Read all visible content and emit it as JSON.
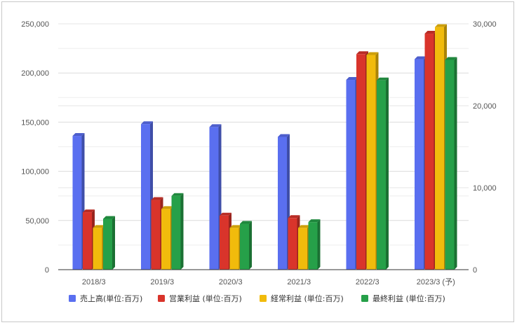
{
  "chart_data": {
    "type": "bar",
    "categories": [
      "2018/3",
      "2019/3",
      "2020/3",
      "2021/3",
      "2022/3",
      "2023/3 (予)"
    ],
    "series": [
      {
        "name": "売上高(単位:百万)",
        "axis": "left",
        "color": "#5a6ff0",
        "values": [
          136000,
          148000,
          145000,
          135000,
          193000,
          214000
        ]
      },
      {
        "name": "営業利益 (単位:百万)",
        "axis": "right",
        "color": "#d9342b",
        "values": [
          7000,
          8500,
          6600,
          6300,
          26300,
          28800
        ]
      },
      {
        "name": "経常利益 (単位:百万)",
        "axis": "right",
        "color": "#f1bb0c",
        "values": [
          5100,
          7400,
          5100,
          5100,
          26200,
          29600
        ]
      },
      {
        "name": "最終利益 (単位:百万)",
        "axis": "right",
        "color": "#26a049",
        "values": [
          6200,
          9000,
          5600,
          5800,
          23100,
          25600
        ]
      }
    ],
    "y_left": {
      "min": 0,
      "max": 250000,
      "ticks": [
        "0",
        "50,000",
        "100,000",
        "150,000",
        "200,000",
        "250,000"
      ]
    },
    "y_right": {
      "min": 0,
      "max": 30000,
      "ticks": [
        "0",
        "10,000",
        "20,000",
        "30,000"
      ]
    },
    "grid": true,
    "legend_position": "bottom"
  }
}
